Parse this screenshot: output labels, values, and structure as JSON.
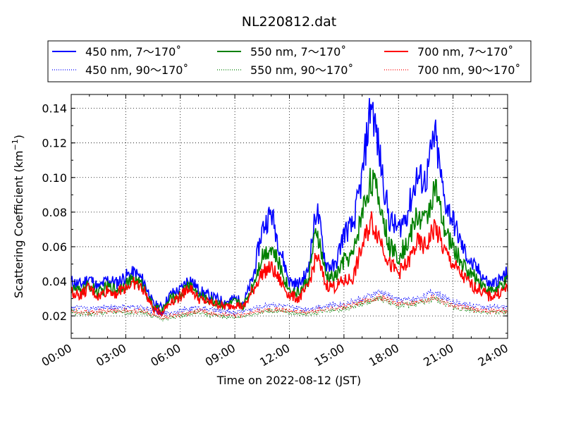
{
  "chart_data": {
    "type": "line",
    "title": "NL220812.dat",
    "xlabel": "Time on 2022-08-12 (JST)",
    "ylabel_main": "Scattering Coefficient (km",
    "ylabel_sup": "−1",
    "ylabel_end": ")",
    "xlim": [
      0,
      24
    ],
    "ylim": [
      0.007,
      0.148
    ],
    "grid": true,
    "legend_placement": "top, above plot",
    "x_ticks": [
      {
        "value": 0,
        "label": "00:00"
      },
      {
        "value": 3,
        "label": "03:00"
      },
      {
        "value": 6,
        "label": "06:00"
      },
      {
        "value": 9,
        "label": "09:00"
      },
      {
        "value": 12,
        "label": "12:00"
      },
      {
        "value": 15,
        "label": "15:00"
      },
      {
        "value": 18,
        "label": "18:00"
      },
      {
        "value": 21,
        "label": "21:00"
      },
      {
        "value": 24,
        "label": "24:00"
      }
    ],
    "y_ticks": [
      {
        "value": 0.02,
        "label": "0.02"
      },
      {
        "value": 0.04,
        "label": "0.04"
      },
      {
        "value": 0.06,
        "label": "0.06"
      },
      {
        "value": 0.08,
        "label": "0.08"
      },
      {
        "value": 0.1,
        "label": "0.10"
      },
      {
        "value": 0.12,
        "label": "0.12"
      },
      {
        "value": 0.14,
        "label": "0.14"
      }
    ],
    "series": [
      {
        "name": "450 nm, 7～170˚",
        "color": "#0000ff",
        "style": "solid",
        "x": [
          0,
          0.5,
          1,
          1.5,
          2,
          2.5,
          3,
          3.5,
          4,
          4.5,
          5,
          5.5,
          6,
          6.5,
          7,
          7.5,
          8,
          8.5,
          9,
          9.5,
          10,
          10.5,
          11,
          11.5,
          12,
          12.5,
          13,
          13.5,
          14,
          14.5,
          15,
          15.5,
          16,
          16.5,
          17,
          17.5,
          18,
          18.5,
          19,
          19.5,
          20,
          20.5,
          21,
          21.5,
          22,
          22.5,
          23,
          23.5,
          24
        ],
        "y": [
          0.04,
          0.038,
          0.042,
          0.036,
          0.041,
          0.039,
          0.043,
          0.045,
          0.04,
          0.027,
          0.025,
          0.033,
          0.035,
          0.042,
          0.035,
          0.032,
          0.03,
          0.028,
          0.03,
          0.028,
          0.042,
          0.07,
          0.08,
          0.058,
          0.04,
          0.038,
          0.045,
          0.083,
          0.05,
          0.048,
          0.068,
          0.072,
          0.1,
          0.145,
          0.11,
          0.075,
          0.07,
          0.08,
          0.1,
          0.098,
          0.125,
          0.088,
          0.075,
          0.06,
          0.05,
          0.045,
          0.038,
          0.04,
          0.045
        ]
      },
      {
        "name": "550 nm, 7～170˚",
        "color": "#008000",
        "style": "solid",
        "x": [
          0,
          0.5,
          1,
          1.5,
          2,
          2.5,
          3,
          3.5,
          4,
          4.5,
          5,
          5.5,
          6,
          6.5,
          7,
          7.5,
          8,
          8.5,
          9,
          9.5,
          10,
          10.5,
          11,
          11.5,
          12,
          12.5,
          13,
          13.5,
          14,
          14.5,
          15,
          15.5,
          16,
          16.5,
          17,
          17.5,
          18,
          18.5,
          19,
          19.5,
          20,
          20.5,
          21,
          21.5,
          22,
          22.5,
          23,
          23.5,
          24
        ],
        "y": [
          0.036,
          0.034,
          0.038,
          0.033,
          0.037,
          0.035,
          0.039,
          0.041,
          0.037,
          0.025,
          0.023,
          0.03,
          0.032,
          0.039,
          0.032,
          0.029,
          0.028,
          0.026,
          0.028,
          0.026,
          0.038,
          0.055,
          0.06,
          0.048,
          0.035,
          0.033,
          0.04,
          0.07,
          0.043,
          0.042,
          0.052,
          0.055,
          0.08,
          0.1,
          0.085,
          0.06,
          0.055,
          0.062,
          0.078,
          0.075,
          0.095,
          0.07,
          0.06,
          0.05,
          0.044,
          0.04,
          0.034,
          0.036,
          0.04
        ]
      },
      {
        "name": "700 nm, 7～170˚",
        "color": "#ff0000",
        "style": "solid",
        "x": [
          0,
          0.5,
          1,
          1.5,
          2,
          2.5,
          3,
          3.5,
          4,
          4.5,
          5,
          5.5,
          6,
          6.5,
          7,
          7.5,
          8,
          8.5,
          9,
          9.5,
          10,
          10.5,
          11,
          11.5,
          12,
          12.5,
          13,
          13.5,
          14,
          14.5,
          15,
          15.5,
          16,
          16.5,
          17,
          17.5,
          18,
          18.5,
          19,
          19.5,
          20,
          20.5,
          21,
          21.5,
          22,
          22.5,
          23,
          23.5,
          24
        ],
        "y": [
          0.034,
          0.032,
          0.036,
          0.031,
          0.035,
          0.033,
          0.037,
          0.039,
          0.035,
          0.024,
          0.022,
          0.029,
          0.031,
          0.037,
          0.03,
          0.028,
          0.027,
          0.025,
          0.027,
          0.025,
          0.035,
          0.045,
          0.048,
          0.04,
          0.032,
          0.03,
          0.036,
          0.055,
          0.038,
          0.037,
          0.04,
          0.042,
          0.06,
          0.075,
          0.065,
          0.05,
          0.045,
          0.05,
          0.062,
          0.06,
          0.072,
          0.058,
          0.05,
          0.043,
          0.038,
          0.035,
          0.031,
          0.033,
          0.036
        ]
      },
      {
        "name": "450 nm, 90～170˚",
        "color": "#0000ff",
        "style": "dotted",
        "x": [
          0,
          1,
          2,
          3,
          4,
          5,
          6,
          7,
          8,
          9,
          10,
          11,
          12,
          13,
          14,
          15,
          16,
          17,
          18,
          19,
          20,
          21,
          22,
          23,
          24
        ],
        "y": [
          0.025,
          0.024,
          0.025,
          0.025,
          0.025,
          0.021,
          0.023,
          0.025,
          0.023,
          0.022,
          0.024,
          0.027,
          0.025,
          0.024,
          0.026,
          0.027,
          0.03,
          0.034,
          0.029,
          0.03,
          0.034,
          0.028,
          0.026,
          0.025,
          0.025
        ]
      },
      {
        "name": "550 nm, 90～170˚",
        "color": "#008000",
        "style": "dotted",
        "x": [
          0,
          1,
          2,
          3,
          4,
          5,
          6,
          7,
          8,
          9,
          10,
          11,
          12,
          13,
          14,
          15,
          16,
          17,
          18,
          19,
          20,
          21,
          22,
          23,
          24
        ],
        "y": [
          0.022,
          0.021,
          0.022,
          0.022,
          0.022,
          0.018,
          0.02,
          0.022,
          0.02,
          0.019,
          0.021,
          0.023,
          0.022,
          0.021,
          0.023,
          0.024,
          0.027,
          0.03,
          0.026,
          0.027,
          0.03,
          0.025,
          0.023,
          0.022,
          0.022
        ]
      },
      {
        "name": "700 nm, 90～170˚",
        "color": "#ff0000",
        "style": "dotted",
        "x": [
          0,
          1,
          2,
          3,
          4,
          5,
          6,
          7,
          8,
          9,
          10,
          11,
          12,
          13,
          14,
          15,
          16,
          17,
          18,
          19,
          20,
          21,
          22,
          23,
          24
        ],
        "y": [
          0.023,
          0.022,
          0.023,
          0.023,
          0.023,
          0.019,
          0.021,
          0.023,
          0.021,
          0.02,
          0.022,
          0.024,
          0.023,
          0.022,
          0.024,
          0.025,
          0.028,
          0.031,
          0.027,
          0.028,
          0.031,
          0.026,
          0.024,
          0.023,
          0.023
        ]
      }
    ]
  }
}
